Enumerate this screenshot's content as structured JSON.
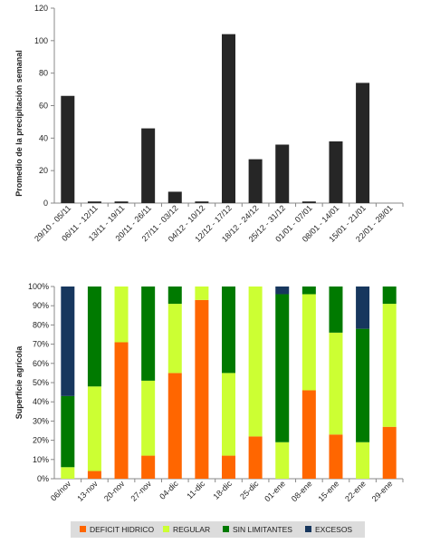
{
  "chart_data": [
    {
      "type": "bar",
      "ylabel": "Promedio de la precipitación semanal",
      "ylim": [
        0,
        120
      ],
      "yticks": [
        0,
        20,
        40,
        60,
        80,
        100,
        120
      ],
      "grid": false,
      "categories": [
        "29/10 - 05/11",
        "06/11 - 12/11",
        "13/11 - 19/11",
        "20/11 - 26/11",
        "27/11 - 03/12",
        "04/12 - 10/12",
        "12/12 - 17/12",
        "18/12 - 24/12",
        "25/12 - 31/12",
        "01/01 - 07/01",
        "08/01 - 14/01",
        "15/01 - 21/01",
        "22/01 - 28/01"
      ],
      "values": [
        66,
        1,
        1,
        46,
        7,
        1,
        104,
        27,
        36,
        1,
        38,
        74,
        0
      ],
      "color": "#262626"
    },
    {
      "type": "bar",
      "stacked": true,
      "ylabel": "Superficie agrícola",
      "ylim": [
        0,
        100
      ],
      "yticks": [
        "0%",
        "10%",
        "20%",
        "30%",
        "40%",
        "50%",
        "60%",
        "70%",
        "80%",
        "90%",
        "100%"
      ],
      "legend_position": "bottom",
      "categories": [
        "06/nov",
        "13-nov",
        "20-nov",
        "27-nov",
        "04-dic",
        "11-dic",
        "18-dic",
        "25-dic",
        "01-ene",
        "08-ene",
        "15-ene",
        "22-ene",
        "29-ene"
      ],
      "series": [
        {
          "name": "DEFICIT HIDRICO",
          "color": "#FF6600",
          "values": [
            0,
            4,
            71,
            12,
            55,
            93,
            12,
            22,
            0,
            46,
            23,
            0,
            27
          ]
        },
        {
          "name": "REGULAR",
          "color": "#CCFF33",
          "values": [
            6,
            44,
            29,
            39,
            36,
            7,
            43,
            78,
            19,
            50,
            53,
            19,
            64
          ]
        },
        {
          "name": "SIN LIMITANTES",
          "color": "#007A00",
          "values": [
            37,
            52,
            0,
            49,
            9,
            0,
            45,
            0,
            77,
            4,
            24,
            59,
            9
          ]
        },
        {
          "name": "EXCESOS",
          "color": "#17375E",
          "values": [
            57,
            0,
            0,
            0,
            0,
            0,
            0,
            0,
            4,
            0,
            0,
            22,
            0
          ]
        }
      ]
    }
  ]
}
